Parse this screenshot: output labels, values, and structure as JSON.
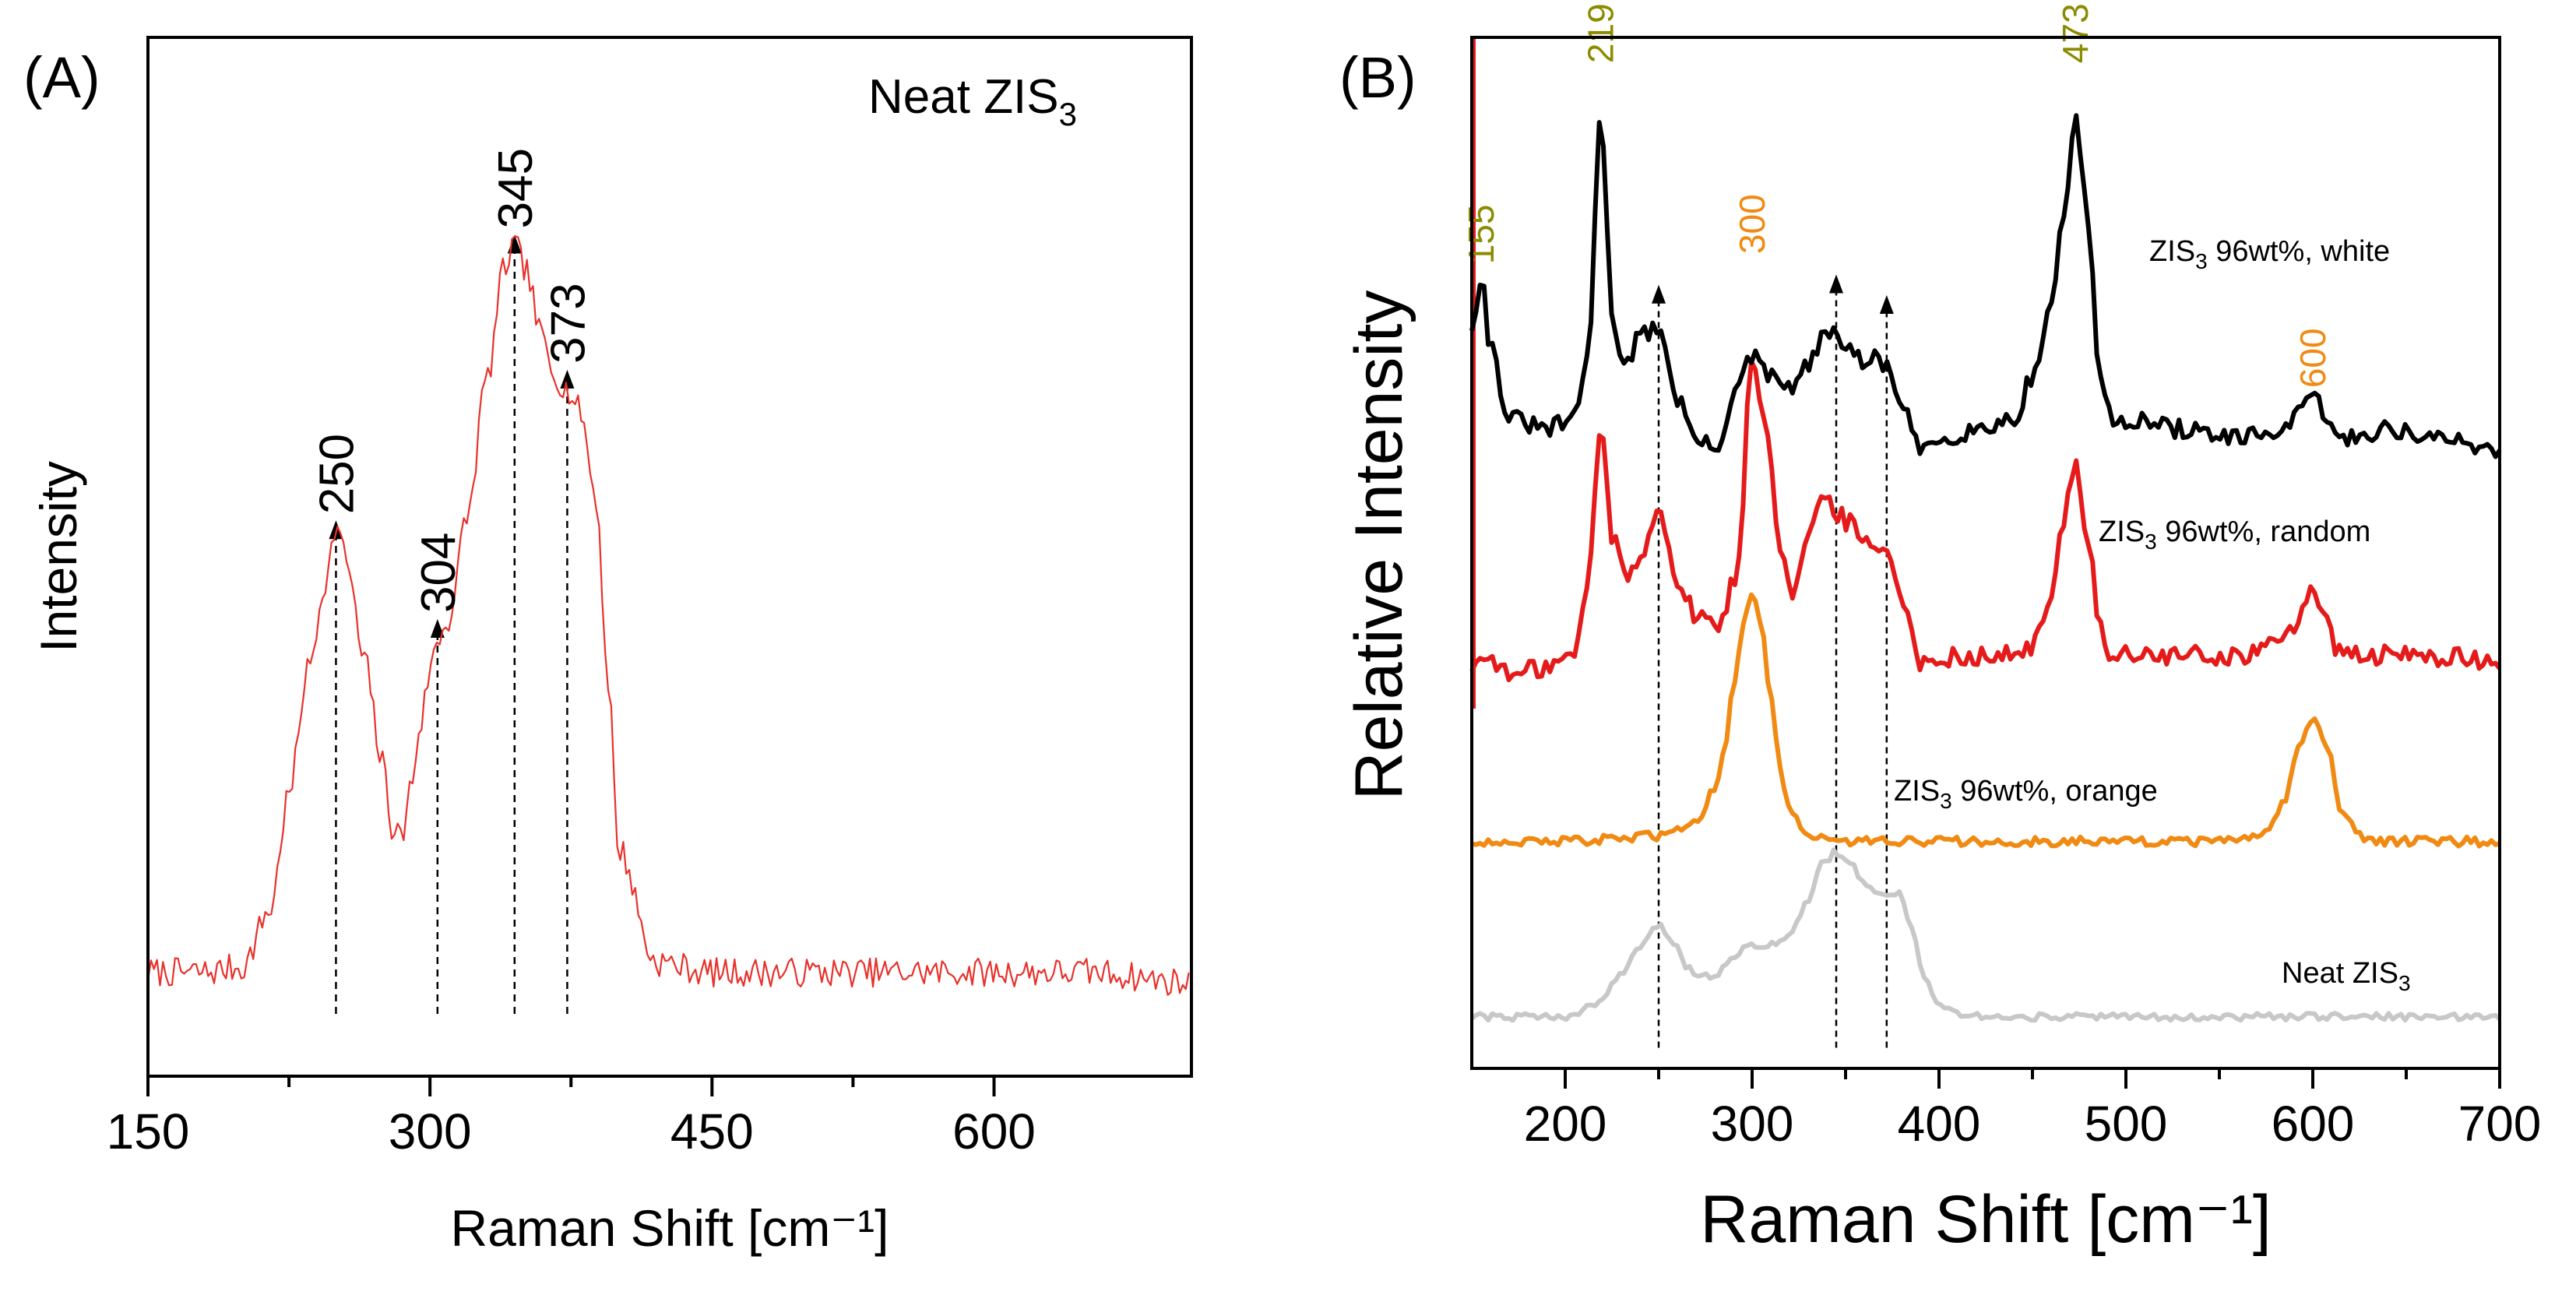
{
  "colors": {
    "neat_a": "#e8312b",
    "white": "#000000",
    "random": "#e51b1b",
    "orange": "#f08a12",
    "neat_b": "#c8c8c8",
    "olive_label": "#8b8b00",
    "orange_label": "#f08a12",
    "axis": "#000000"
  },
  "chart_data": [
    {
      "panel_label": "(A)",
      "type": "line",
      "title": "",
      "annotation_text": "Neat ZIS",
      "annotation_sub": "3",
      "xlabel": "Raman Shift [cm⁻¹]",
      "ylabel": "Intensity",
      "xlim": [
        150,
        705
      ],
      "ylim": [
        0,
        100
      ],
      "xticks": [
        150,
        300,
        450,
        600
      ],
      "xtick_labels": [
        "150",
        "300",
        "450",
        "600"
      ],
      "minor_xticks": [
        225,
        375,
        525
      ],
      "series": [
        {
          "name": "Neat ZIS3",
          "color_key": "neat_a",
          "noise": 1.4,
          "x": [
            150,
            180,
            200,
            215,
            225,
            235,
            245,
            250,
            255,
            265,
            275,
            280,
            285,
            290,
            295,
            300,
            304,
            310,
            320,
            330,
            340,
            345,
            350,
            360,
            365,
            373,
            380,
            388,
            395,
            400,
            420,
            450,
            500,
            550,
            600,
            650,
            705
          ],
          "y": [
            10,
            10,
            10.5,
            16,
            27,
            39,
            48,
            53,
            50,
            40,
            30,
            24,
            23,
            28,
            34,
            39,
            42,
            44,
            54,
            67,
            78,
            80,
            78,
            71,
            68,
            66,
            64,
            56,
            38,
            22,
            11,
            10,
            10,
            10,
            10,
            10,
            9
          ]
        }
      ],
      "peaks": [
        {
          "x": 250,
          "label": "250",
          "y": 53.5
        },
        {
          "x": 304,
          "label": "304",
          "y": 44
        },
        {
          "x": 345,
          "label": "345",
          "y": 81
        },
        {
          "x": 373,
          "label": "373",
          "y": 68
        }
      ]
    },
    {
      "panel_label": "(B)",
      "type": "line",
      "title": "",
      "xlabel": "Raman Shift [cm⁻¹]",
      "ylabel": "Relative Intensity",
      "xlim": [
        150,
        700
      ],
      "ylim": [
        0,
        100
      ],
      "xticks": [
        200,
        300,
        400,
        500,
        600,
        700
      ],
      "xtick_labels": [
        "200",
        "300",
        "400",
        "500",
        "600",
        "700"
      ],
      "minor_xticks": [
        250,
        350,
        450,
        550,
        650
      ],
      "series": [
        {
          "name": "ZIS3 96wt%, white",
          "label_text": "ZIS",
          "label_sub": "3",
          "label_rest": " 96wt%, white",
          "color_key": "white",
          "noise": 0.9,
          "x": [
            150,
            155,
            160,
            170,
            190,
            205,
            212,
            219,
            226,
            232,
            240,
            250,
            260,
            270,
            280,
            292,
            300,
            310,
            320,
            330,
            338,
            345,
            352,
            360,
            365,
            373,
            380,
            390,
            400,
            420,
            440,
            450,
            460,
            466,
            473,
            480,
            486,
            492,
            500,
            530,
            560,
            585,
            600,
            615,
            640,
            670,
            700
          ],
          "y": [
            72,
            77,
            70,
            63,
            62,
            63,
            69,
            92,
            72,
            68,
            71,
            72,
            65,
            61,
            60,
            66,
            69,
            67,
            66,
            68,
            71,
            71,
            70,
            68,
            69,
            68,
            64,
            60,
            61,
            62,
            63,
            67,
            74,
            82,
            92,
            82,
            67,
            63,
            63,
            62,
            61,
            62,
            65,
            61,
            62,
            61,
            60
          ]
        },
        {
          "name": "ZIS3 96wt%, random",
          "label_text": "ZIS",
          "label_sub": "3",
          "label_rest": " 96wt%, random",
          "color_key": "random",
          "noise": 1.0,
          "x": [
            150,
            160,
            170,
            190,
            205,
            212,
            219,
            226,
            232,
            240,
            250,
            260,
            270,
            282,
            292,
            300,
            308,
            315,
            322,
            330,
            338,
            345,
            352,
            360,
            365,
            373,
            380,
            390,
            400,
            420,
            440,
            450,
            460,
            466,
            473,
            480,
            486,
            492,
            500,
            530,
            560,
            580,
            590,
            600,
            607,
            615,
            640,
            670,
            700
          ],
          "y": [
            39,
            40,
            38,
            39,
            40,
            47,
            62,
            51,
            48,
            49,
            55,
            47,
            44,
            43,
            48,
            69,
            62,
            51,
            46,
            52,
            55,
            54,
            53,
            51,
            51,
            50,
            46,
            39,
            40,
            40,
            40,
            41,
            45,
            53,
            59,
            51,
            43,
            40,
            40,
            40,
            40,
            41,
            43,
            47,
            43,
            40,
            40,
            40,
            39
          ]
        },
        {
          "name": "ZIS3 96wt%, orange",
          "label_text": "ZIS",
          "label_sub": "3",
          "label_rest": " 96wt%, orange",
          "color_key": "orange",
          "noise": 0.45,
          "x": [
            150,
            200,
            250,
            270,
            280,
            285,
            290,
            295,
            300,
            305,
            310,
            315,
            320,
            330,
            350,
            400,
            500,
            560,
            575,
            585,
            592,
            600,
            608,
            615,
            625,
            640,
            700
          ],
          "y": [
            22,
            22,
            22.5,
            24,
            27,
            31,
            37,
            43,
            46,
            43,
            36,
            29,
            25,
            22.5,
            22,
            22,
            22,
            22,
            23,
            26,
            31,
            34,
            31,
            25,
            22.5,
            22,
            22
          ]
        },
        {
          "name": "Neat ZIS3",
          "label_text": "Neat ZIS",
          "label_sub": "3",
          "label_rest": "",
          "color_key": "neat_b",
          "noise": 0.35,
          "x": [
            150,
            190,
            200,
            215,
            230,
            240,
            250,
            258,
            265,
            272,
            280,
            290,
            300,
            310,
            320,
            330,
            338,
            345,
            352,
            360,
            370,
            378,
            385,
            392,
            400,
            420,
            500,
            600,
            700
          ],
          "y": [
            5,
            5,
            5,
            6,
            9,
            12,
            14,
            12,
            10,
            9,
            9,
            11,
            12,
            12,
            13,
            16,
            20,
            21,
            20,
            18,
            17,
            17,
            14,
            9,
            6,
            5,
            5,
            5,
            5
          ]
        }
      ],
      "olive_peaks": [
        {
          "x": 155,
          "label": "155",
          "y": 78
        },
        {
          "x": 219,
          "label": "219",
          "y": 97.5
        },
        {
          "x": 473,
          "label": "473",
          "y": 97.5
        }
      ],
      "orange_peaks": [
        {
          "x": 300,
          "label": "300",
          "y": 79
        },
        {
          "x": 600,
          "label": "600",
          "y": 66
        }
      ],
      "marker_lines": [
        {
          "x": 250,
          "top": 76
        },
        {
          "x": 345,
          "top": 77
        },
        {
          "x": 372,
          "top": 75
        }
      ]
    }
  ]
}
